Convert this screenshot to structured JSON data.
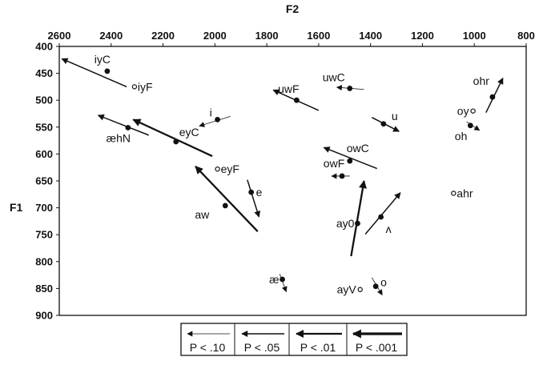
{
  "chart_data": {
    "type": "scatter",
    "title": "",
    "xlabel": "F2",
    "ylabel": "F1",
    "x_reversed": true,
    "y_reversed": true,
    "xlim": [
      2600,
      800
    ],
    "ylim": [
      400,
      900
    ],
    "xticks": [
      "2600",
      "2400",
      "2200",
      "2000",
      "1800",
      "1600",
      "1400",
      "1200",
      "1000",
      "800"
    ],
    "yticks": [
      "400",
      "450",
      "500",
      "550",
      "600",
      "650",
      "700",
      "750",
      "800",
      "850",
      "900"
    ],
    "legend": {
      "placement": "bottom-center",
      "items": [
        {
          "label": "P < .10",
          "level": 1
        },
        {
          "label": "P < .05",
          "level": 2
        },
        {
          "label": "P < .01",
          "level": 3
        },
        {
          "label": "P < .001",
          "level": 4
        }
      ]
    },
    "vowels": [
      {
        "label": "iyC",
        "f2": 2415,
        "f1": 446,
        "marker": "filled",
        "arrow": {
          "from": [
            2340,
            475
          ],
          "to": [
            2590,
            423
          ],
          "level": 2
        }
      },
      {
        "label": "iyF",
        "f2": 2310,
        "f1": 475,
        "marker": "open"
      },
      {
        "label": "i",
        "f2": 1990,
        "f1": 536,
        "marker": "filled",
        "arrow": {
          "from": [
            1940,
            530
          ],
          "to": [
            2060,
            548
          ],
          "level": 1
        }
      },
      {
        "label": "æhN",
        "f2": 2335,
        "f1": 551,
        "marker": "filled",
        "arrow": {
          "from": [
            2255,
            565
          ],
          "to": [
            2450,
            528
          ],
          "level": 2
        }
      },
      {
        "label": "eyC",
        "f2": 2150,
        "f1": 577,
        "marker": "filled",
        "arrow": {
          "from": [
            2010,
            604
          ],
          "to": [
            2315,
            536
          ],
          "level": 3
        }
      },
      {
        "label": "eyF",
        "f2": 1990,
        "f1": 628,
        "marker": "open"
      },
      {
        "label": "e",
        "f2": 1860,
        "f1": 671,
        "marker": "filled",
        "arrow": {
          "from": [
            1875,
            648
          ],
          "to": [
            1830,
            717
          ],
          "level": 2
        }
      },
      {
        "label": "aw",
        "f2": 1960,
        "f1": 696,
        "marker": "filled",
        "arrow": {
          "from": [
            1835,
            744
          ],
          "to": [
            2075,
            623
          ],
          "level": 3
        }
      },
      {
        "label": "uwF",
        "f2": 1685,
        "f1": 500,
        "marker": "filled",
        "arrow": {
          "from": [
            1600,
            519
          ],
          "to": [
            1775,
            481
          ],
          "level": 2
        }
      },
      {
        "label": "uwC",
        "f2": 1480,
        "f1": 478,
        "marker": "filled",
        "arrow": {
          "from": [
            1425,
            480
          ],
          "to": [
            1530,
            476
          ],
          "level": 1
        }
      },
      {
        "label": "u",
        "f2": 1350,
        "f1": 544,
        "marker": "filled",
        "arrow": {
          "from": [
            1395,
            532
          ],
          "to": [
            1290,
            558
          ],
          "level": 2
        }
      },
      {
        "label": "owC",
        "f2": 1480,
        "f1": 613,
        "marker": "filled",
        "arrow": {
          "from": [
            1375,
            627
          ],
          "to": [
            1580,
            588
          ],
          "level": 2
        }
      },
      {
        "label": "owF",
        "f2": 1510,
        "f1": 641,
        "marker": "filled",
        "arrow": {
          "from": [
            1480,
            641
          ],
          "to": [
            1550,
            641
          ],
          "level": 1
        }
      },
      {
        "label": "ay0",
        "f2": 1450,
        "f1": 729,
        "marker": "filled",
        "arrow": {
          "from": [
            1475,
            790
          ],
          "to": [
            1425,
            650
          ],
          "level": 3
        }
      },
      {
        "label": "ʌ",
        "f2": 1360,
        "f1": 717,
        "marker": "filled",
        "arrow": {
          "from": [
            1420,
            749
          ],
          "to": [
            1285,
            672
          ],
          "level": 2
        }
      },
      {
        "label": "ahr",
        "f2": 1080,
        "f1": 673,
        "marker": "open"
      },
      {
        "label": "ohr",
        "f2": 930,
        "f1": 494,
        "marker": "filled",
        "arrow": {
          "from": [
            955,
            523
          ],
          "to": [
            890,
            459
          ],
          "level": 2
        }
      },
      {
        "label": "oy",
        "f2": 1005,
        "f1": 520,
        "marker": "open"
      },
      {
        "label": "oh",
        "f2": 1015,
        "f1": 547,
        "marker": "filled",
        "arrow": {
          "from": [
            1030,
            540
          ],
          "to": [
            980,
            556
          ],
          "level": 1
        }
      },
      {
        "label": "æ",
        "f2": 1740,
        "f1": 833,
        "marker": "filled",
        "arrow": {
          "from": [
            1750,
            823
          ],
          "to": [
            1725,
            856
          ],
          "level": 1
        }
      },
      {
        "label": "ayV",
        "f2": 1440,
        "f1": 852,
        "marker": "open"
      },
      {
        "label": "o",
        "f2": 1380,
        "f1": 846,
        "marker": "filled",
        "arrow": {
          "from": [
            1395,
            830
          ],
          "to": [
            1355,
            862
          ],
          "level": 1
        }
      }
    ]
  }
}
